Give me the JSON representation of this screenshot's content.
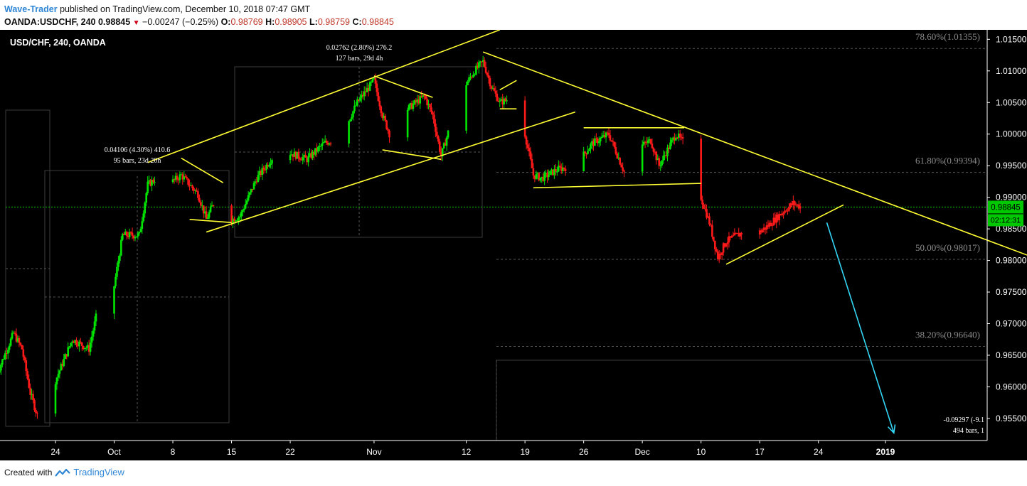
{
  "header": {
    "author": "Wave-Trader",
    "published": "published on TradingView.com, December 10, 2018 07:47 GMT",
    "symbol": "OANDA:USDCHF, 240",
    "last": "0.98845",
    "change": "−0.00247 (−0.25%)",
    "o_label": "O:",
    "o": "0.98769",
    "h_label": "H:",
    "h": "0.98905",
    "l_label": "L:",
    "l": "0.98759",
    "c_label": "C:",
    "c": "0.98845"
  },
  "footer": {
    "created_with": "Created with",
    "brand": "TradingView"
  },
  "colors": {
    "background": "#000000",
    "up_candle": "#00e600",
    "down_candle": "#ff1a1a",
    "trendline": "#ffff33",
    "projection_arrow": "#33d6f5",
    "price_line": "#00c800",
    "fib_text": "#8c8c8c",
    "axis_text": "#ffffff"
  },
  "chart_data": {
    "type": "candlestick",
    "title": "USD/CHF, 240, OANDA",
    "ylim": [
      0.9515,
      1.0165
    ],
    "y_ticks": [
      "1.01500",
      "1.01000",
      "1.00500",
      "1.00000",
      "0.99500",
      "0.99000",
      "0.98500",
      "0.98000",
      "0.97500",
      "0.97000",
      "0.96500",
      "0.96000",
      "0.95500"
    ],
    "x_ticks": [
      {
        "label": "24",
        "date": "2018-09-24"
      },
      {
        "label": "Oct",
        "date": "2018-10-01"
      },
      {
        "label": "8",
        "date": "2018-10-08"
      },
      {
        "label": "15",
        "date": "2018-10-15"
      },
      {
        "label": "22",
        "date": "2018-10-22"
      },
      {
        "label": "Nov",
        "date": "2018-11-01"
      },
      {
        "label": "12",
        "date": "2018-11-12"
      },
      {
        "label": "19",
        "date": "2018-11-19"
      },
      {
        "label": "26",
        "date": "2018-11-26"
      },
      {
        "label": "Dec",
        "date": "2018-12-03"
      },
      {
        "label": "10",
        "date": "2018-12-10"
      },
      {
        "label": "17",
        "date": "2018-12-17"
      },
      {
        "label": "24",
        "date": "2018-12-24"
      },
      {
        "label": "2019",
        "date": "2019-01-01"
      }
    ],
    "current_price": {
      "label": "0.98845",
      "value": 0.98845
    },
    "countdown": "02:12:31",
    "fib_levels": [
      {
        "label": "78.60%(1.01355)",
        "value": 1.01355
      },
      {
        "label": "61.80%(0.99394)",
        "value": 0.99394
      },
      {
        "label": "50.00%(0.98017)",
        "value": 0.98017
      },
      {
        "label": "38.20%(0.96640)",
        "value": 0.9664
      }
    ],
    "measurements": [
      {
        "line1": "0.04106 (4.30%) 410.6",
        "line2": "95 bars, 23d 20h"
      },
      {
        "line1": "0.02762 (2.80%) 276.2",
        "line2": "127 bars, 29d 4h"
      },
      {
        "line1": "-0.09297 (-9.1",
        "line2": "494 bars, 1"
      }
    ],
    "close_path": [
      {
        "date": "2018-09-17",
        "price": 0.962
      },
      {
        "date": "2018-09-19",
        "price": 0.9685
      },
      {
        "date": "2018-09-20",
        "price": 0.966
      },
      {
        "date": "2018-09-21",
        "price": 0.959
      },
      {
        "date": "2018-09-22",
        "price": 0.9548
      },
      {
        "date": "2018-09-24",
        "price": 0.961
      },
      {
        "date": "2018-09-26",
        "price": 0.9675
      },
      {
        "date": "2018-09-28",
        "price": 0.966
      },
      {
        "date": "2018-09-29",
        "price": 0.972
      },
      {
        "date": "2018-09-30",
        "price": 0.979
      },
      {
        "date": "2018-10-01",
        "price": 0.976
      },
      {
        "date": "2018-10-02",
        "price": 0.984
      },
      {
        "date": "2018-10-04",
        "price": 0.984
      },
      {
        "date": "2018-10-05",
        "price": 0.992
      },
      {
        "date": "2018-10-06",
        "price": 0.993
      },
      {
        "date": "2018-10-08",
        "price": 0.9925
      },
      {
        "date": "2018-10-09",
        "price": 0.9935
      },
      {
        "date": "2018-10-11",
        "price": 0.9905
      },
      {
        "date": "2018-10-12",
        "price": 0.9865
      },
      {
        "date": "2018-10-13",
        "price": 0.9895
      },
      {
        "date": "2018-10-14",
        "price": 0.989
      },
      {
        "date": "2018-10-15",
        "price": 0.9865
      },
      {
        "date": "2018-10-16",
        "price": 0.987
      },
      {
        "date": "2018-10-18",
        "price": 0.993
      },
      {
        "date": "2018-10-20",
        "price": 0.9965
      },
      {
        "date": "2018-10-22",
        "price": 0.997
      },
      {
        "date": "2018-10-24",
        "price": 0.996
      },
      {
        "date": "2018-10-26",
        "price": 0.9985
      },
      {
        "date": "2018-10-28",
        "price": 0.9995
      },
      {
        "date": "2018-10-30",
        "price": 1.005
      },
      {
        "date": "2018-11-01",
        "price": 1.0085
      },
      {
        "date": "2018-11-02",
        "price": 1.003
      },
      {
        "date": "2018-11-03",
        "price": 0.9995
      },
      {
        "date": "2018-11-05",
        "price": 1.004
      },
      {
        "date": "2018-11-07",
        "price": 1.006
      },
      {
        "date": "2018-11-08",
        "price": 1.003
      },
      {
        "date": "2018-11-09",
        "price": 0.9965
      },
      {
        "date": "2018-11-10",
        "price": 1.001
      },
      {
        "date": "2018-11-12",
        "price": 1.008
      },
      {
        "date": "2018-11-13",
        "price": 1.01
      },
      {
        "date": "2018-11-14",
        "price": 1.0115
      },
      {
        "date": "2018-11-15",
        "price": 1.0075
      },
      {
        "date": "2018-11-16",
        "price": 1.005
      },
      {
        "date": "2018-11-18",
        "price": 1.006
      },
      {
        "date": "2018-11-19",
        "price": 1.0
      },
      {
        "date": "2018-11-20",
        "price": 0.9935
      },
      {
        "date": "2018-11-21",
        "price": 0.993
      },
      {
        "date": "2018-11-23",
        "price": 0.9945
      },
      {
        "date": "2018-11-25",
        "price": 0.995
      },
      {
        "date": "2018-11-27",
        "price": 0.9985
      },
      {
        "date": "2018-11-29",
        "price": 1.0
      },
      {
        "date": "2018-12-01",
        "price": 0.9935
      },
      {
        "date": "2018-12-02",
        "price": 0.9975
      },
      {
        "date": "2018-12-04",
        "price": 0.999
      },
      {
        "date": "2018-12-05",
        "price": 0.995
      },
      {
        "date": "2018-12-07",
        "price": 1.0
      },
      {
        "date": "2018-12-08",
        "price": 0.9985
      },
      {
        "date": "2018-12-09",
        "price": 0.994
      },
      {
        "date": "2018-12-10",
        "price": 0.99
      },
      {
        "date": "2018-12-11",
        "price": 0.986
      },
      {
        "date": "2018-12-12",
        "price": 0.9805
      },
      {
        "date": "2018-12-13",
        "price": 0.983
      },
      {
        "date": "2018-12-15",
        "price": 0.9845
      },
      {
        "date": "2018-12-16",
        "price": 0.9835
      },
      {
        "date": "2018-12-18",
        "price": 0.9855
      },
      {
        "date": "2018-12-20",
        "price": 0.988
      },
      {
        "date": "2018-12-21",
        "price": 0.989
      },
      {
        "date": "2018-12-22",
        "price": 0.98845
      }
    ],
    "trendlines": [
      {
        "name": "channel-upper",
        "from": [
          "2018-10-05",
          0.9955
        ],
        "to": [
          "2018-11-16",
          1.0165
        ]
      },
      {
        "name": "channel-lower",
        "from": [
          "2018-10-12",
          0.9845
        ],
        "to": [
          "2018-11-25",
          1.0035
        ]
      },
      {
        "name": "main-downtrend",
        "from": [
          "2018-11-14",
          1.013
        ],
        "to": [
          "2019-01-18",
          0.9808
        ]
      },
      {
        "name": "rising-support",
        "from": [
          "2018-12-13",
          0.9794
        ],
        "to": [
          "2018-12-27",
          0.9888
        ]
      },
      {
        "name": "range-top",
        "from": [
          "2018-11-26",
          1.001
        ],
        "to": [
          "2018-12-08",
          1.001
        ]
      },
      {
        "name": "range-bottom",
        "from": [
          "2018-11-20",
          0.9915
        ],
        "to": [
          "2018-12-10",
          0.9922
        ]
      },
      {
        "name": "flag1-top",
        "from": [
          "2018-10-09",
          0.9962
        ],
        "to": [
          "2018-10-14",
          0.9923
        ]
      },
      {
        "name": "flag1-bottom",
        "from": [
          "2018-10-10",
          0.9865
        ],
        "to": [
          "2018-10-15",
          0.986
        ]
      },
      {
        "name": "flag2-top",
        "from": [
          "2018-11-01",
          1.0092
        ],
        "to": [
          "2018-11-08",
          1.0058
        ]
      },
      {
        "name": "flag2-bottom",
        "from": [
          "2018-11-02",
          0.9975
        ],
        "to": [
          "2018-11-09",
          0.996
        ]
      },
      {
        "name": "flag3-top",
        "from": [
          "2018-11-16",
          1.007
        ],
        "to": [
          "2018-11-18",
          1.0085
        ]
      },
      {
        "name": "flag3-bottom",
        "from": [
          "2018-11-16",
          1.004
        ],
        "to": [
          "2018-11-18",
          1.004
        ]
      }
    ],
    "projection_arrow": {
      "from": [
        "2018-12-25",
        0.986
      ],
      "to": [
        "2019-01-02",
        0.9527
      ]
    },
    "grid": false,
    "legend": "none"
  }
}
